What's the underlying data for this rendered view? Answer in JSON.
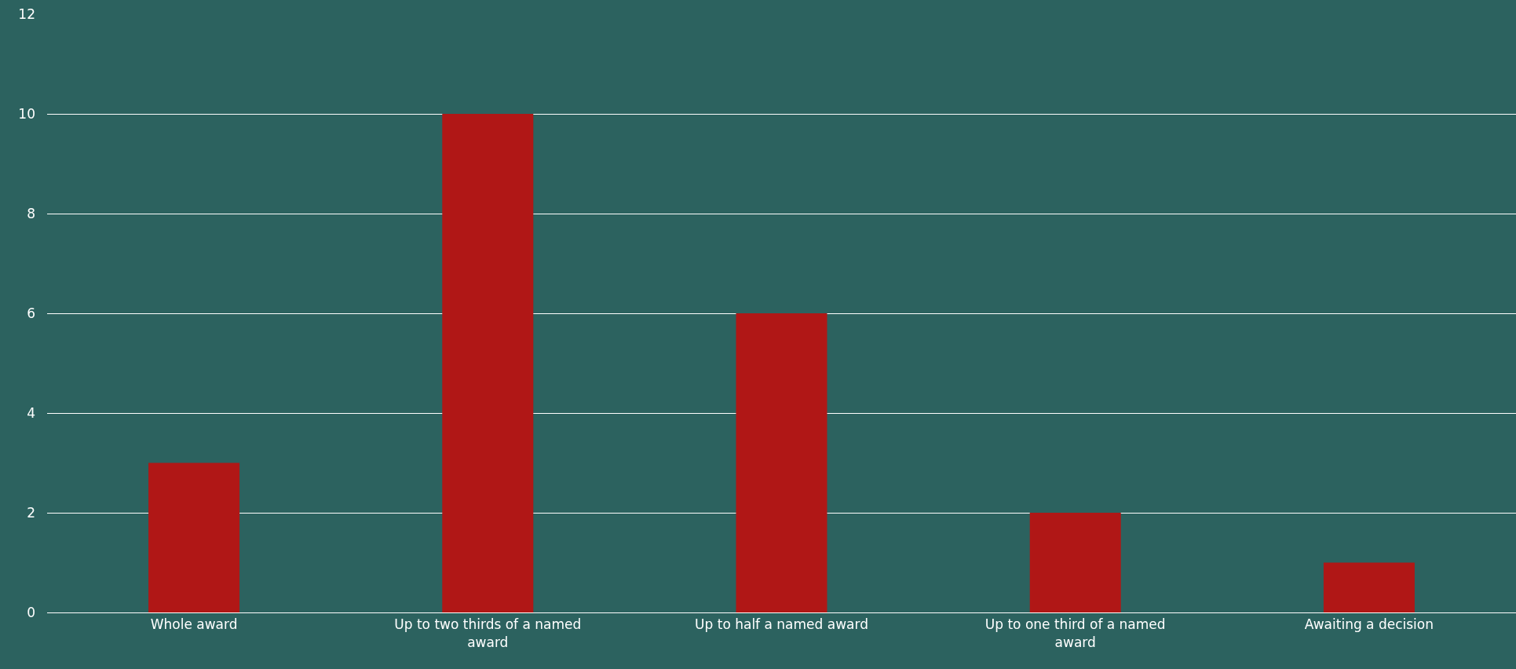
{
  "chart_data": {
    "type": "bar",
    "categories": [
      "Whole award",
      "Up to two thirds of a named award",
      "Up to half a named award",
      "Up to one third of a named award",
      "Awaiting a decision"
    ],
    "values": [
      3,
      10,
      6,
      2,
      1
    ],
    "color": "#b01716",
    "ylim": [
      0,
      12
    ],
    "yticks": [
      0,
      2,
      4,
      6,
      8,
      10,
      12
    ],
    "grid": "y",
    "legend": false
  }
}
